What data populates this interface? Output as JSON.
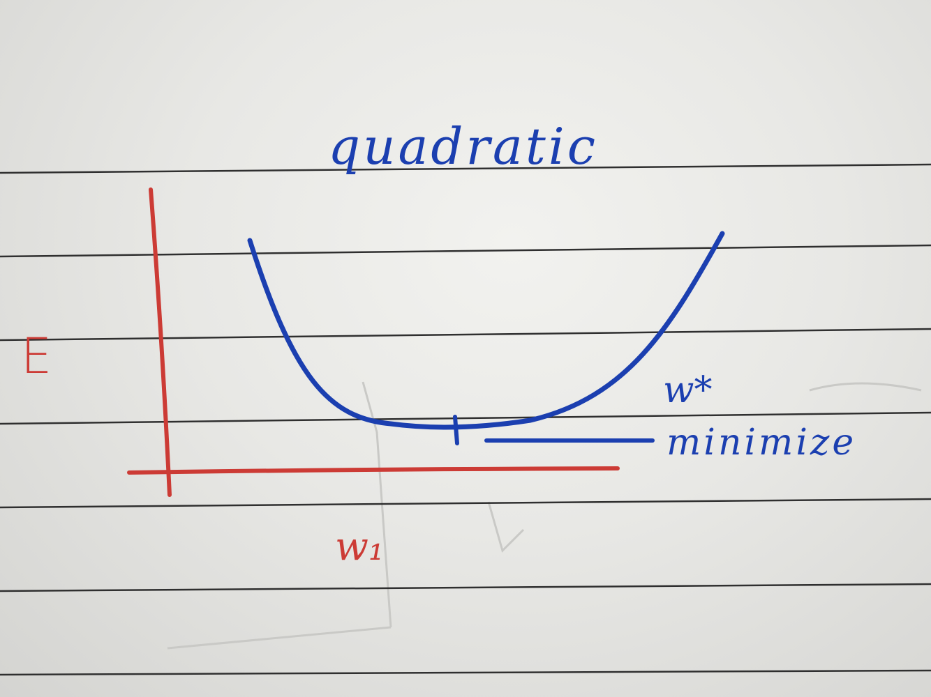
{
  "sketch": {
    "title": "quadratic",
    "y_label": "E",
    "x_label": "w₁",
    "minimum_label": "w*",
    "minimum_note": "minimize"
  },
  "colors": {
    "paper": "#ecece9",
    "rule_line": "#2a2a2a",
    "blue_ink": "#1b3fb0",
    "red_ink": "#cc3b35"
  }
}
